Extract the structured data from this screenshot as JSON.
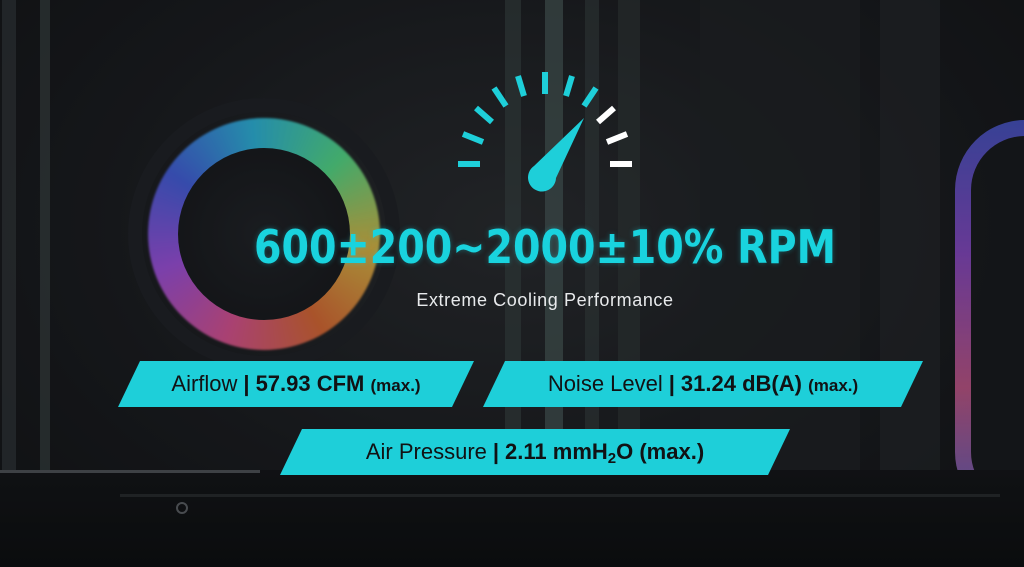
{
  "headline": "600±200~2000±10% RPM",
  "subtitle": "Extreme Cooling Performance",
  "specs": {
    "airflow": {
      "label": "Airflow",
      "separator": "|",
      "value": "57.93 CFM",
      "qualifier": "(max.)"
    },
    "noise": {
      "label": "Noise Level",
      "separator": "|",
      "value": "31.24 dB(A)",
      "qualifier": "(max.)"
    },
    "pressure": {
      "label": "Air Pressure",
      "separator": "|",
      "value_prefix": "2.11 mmH",
      "value_sub": "2",
      "value_suffix": "O (max.)"
    }
  },
  "colors": {
    "accent": "#1ecfd9",
    "text_dark": "#111214",
    "headline": "#19d3de"
  },
  "icons": {
    "gauge": "speedometer-icon"
  }
}
